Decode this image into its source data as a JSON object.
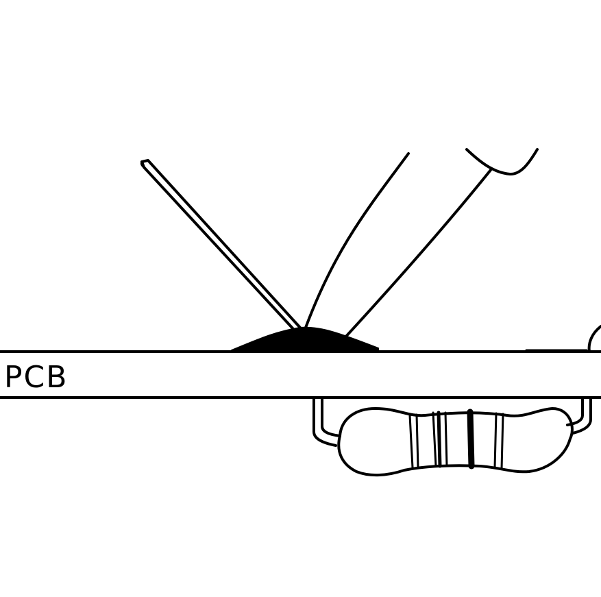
{
  "diagram": {
    "board_label": "PCB"
  },
  "colors": {
    "ink": "#000000",
    "background": "#ffffff"
  }
}
